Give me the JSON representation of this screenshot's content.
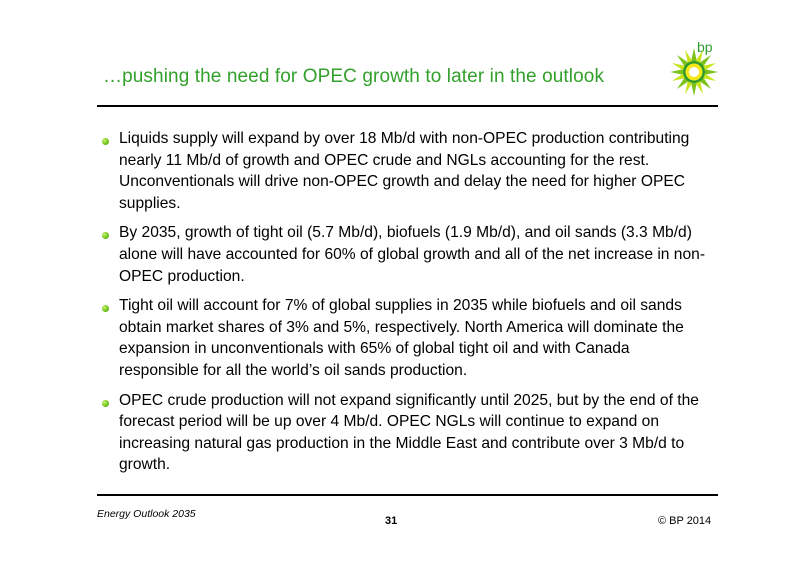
{
  "header": {
    "title": "…pushing the need for OPEC growth to later in the outlook",
    "logo_text": "bp"
  },
  "bullets": [
    {
      "text": "Liquids supply will expand by over 18 Mb/d with non-OPEC production contributing nearly 11 Mb/d of growth and OPEC crude and NGLs accounting for the rest. Unconventionals will drive non-OPEC growth and delay the need for higher OPEC supplies."
    },
    {
      "text": "By 2035, growth of tight oil (5.7 Mb/d), biofuels (1.9 Mb/d), and oil sands (3.3 Mb/d) alone will have accounted for 60% of global growth and all of the net increase in non-OPEC production."
    },
    {
      "text": "Tight oil will account for 7% of global supplies in 2035 while biofuels and oil sands obtain market shares of 3% and 5%, respectively. North America will dominate the expansion in unconventionals with 65% of global tight oil and with Canada responsible for all the world’s oil sands production."
    },
    {
      "text": "OPEC crude production will not expand significantly until 2025, but by the end of the forecast period will be up over 4 Mb/d. OPEC NGLs will continue to expand on increasing natural gas production in the Middle East and contribute over 3 Mb/d to growth."
    }
  ],
  "footer": {
    "left": "Energy Outlook 2035",
    "page_number": "31",
    "right": "© BP 2014"
  },
  "colors": {
    "title": "#33a02c",
    "bullet": "#74c51f",
    "rule": "#000000"
  }
}
